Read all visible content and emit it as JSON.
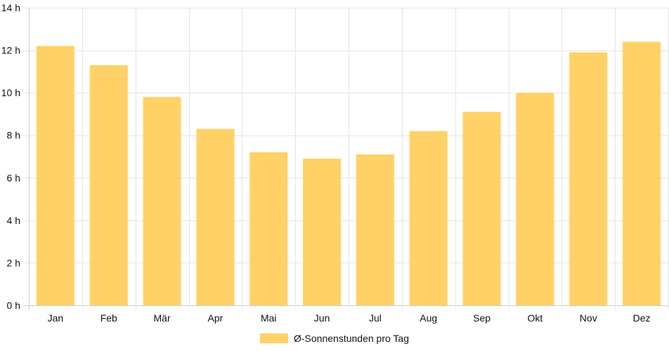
{
  "chart_data": {
    "type": "bar",
    "categories": [
      "Jan",
      "Feb",
      "Mär",
      "Apr",
      "Mai",
      "Jun",
      "Jul",
      "Aug",
      "Sep",
      "Okt",
      "Nov",
      "Dez"
    ],
    "series": [
      {
        "name": "Ø-Sonnenstunden pro Tag",
        "values": [
          12.2,
          11.3,
          9.8,
          8.3,
          7.2,
          6.9,
          7.1,
          8.2,
          9.1,
          10.0,
          11.9,
          12.4
        ],
        "color": "#ffd166"
      }
    ],
    "y_ticks": [
      "0 h",
      "2 h",
      "4 h",
      "6 h",
      "8 h",
      "10 h",
      "12 h",
      "14 h"
    ],
    "ylim": [
      0,
      14
    ],
    "grid": true,
    "legend_position": "bottom"
  }
}
